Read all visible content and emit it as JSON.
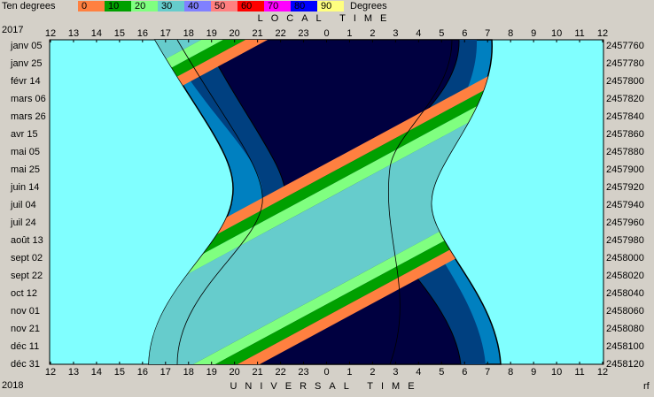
{
  "chart_data": {
    "type": "visibility",
    "legend_title": "Ten degrees",
    "legend_unit": "Degrees",
    "legend": [
      {
        "label": 0,
        "color": "#ff8040"
      },
      {
        "label": 10,
        "color": "#00a000"
      },
      {
        "label": 20,
        "color": "#80ff80"
      },
      {
        "label": 30,
        "color": "#66cccc"
      },
      {
        "label": 40,
        "color": "#8080ff"
      },
      {
        "label": 50,
        "color": "#ff8080"
      },
      {
        "label": 60,
        "color": "#ff0000"
      },
      {
        "label": 70,
        "color": "#ff00ff"
      },
      {
        "label": 80,
        "color": "#0000ff"
      },
      {
        "label": 90,
        "color": "#ffff80"
      }
    ],
    "top_title": "LOCAL TIME",
    "bottom_title": "UNIVERSAL TIME",
    "start_year": "2017",
    "end_year": "2018",
    "credit": "rf",
    "top_hours": [
      12,
      13,
      14,
      15,
      16,
      17,
      18,
      19,
      20,
      21,
      22,
      23,
      0,
      1,
      2,
      3,
      4,
      5,
      6,
      7,
      8,
      9,
      10,
      11,
      12
    ],
    "bottom_hours": [
      12,
      13,
      14,
      15,
      16,
      17,
      18,
      19,
      20,
      21,
      22,
      23,
      0,
      1,
      2,
      3,
      4,
      5,
      6,
      7,
      8,
      9,
      10,
      11,
      12
    ],
    "dates": [
      "janv 05",
      "janv 25",
      "févr 14",
      "mars 06",
      "mars 26",
      "avr 15",
      "mai 05",
      "mai 25",
      "juin 14",
      "juil 04",
      "juil 24",
      "août 13",
      "sept 02",
      "sept 22",
      "oct 12",
      "nov 01",
      "nov 21",
      "déc 11",
      "déc 31"
    ],
    "julian_days": [
      2457760,
      2457780,
      2457800,
      2457820,
      2457840,
      2457860,
      2457880,
      2457900,
      2457920,
      2457940,
      2457960,
      2457980,
      2458000,
      2458020,
      2458040,
      2458060,
      2458080,
      2458100,
      2458120
    ]
  }
}
